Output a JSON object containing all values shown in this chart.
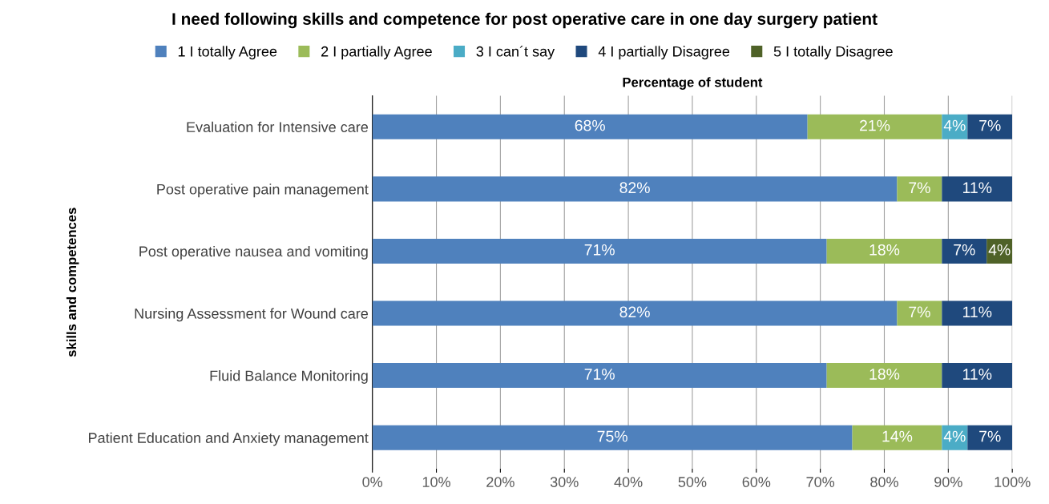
{
  "chart_data": {
    "type": "bar",
    "orientation": "horizontal",
    "stacked": true,
    "title": "I need following skills and competence for post operative care in one day surgery patient",
    "xlabel": "Percentage of student",
    "ylabel": "skills and competences",
    "categories": [
      "Evaluation for Intensive care",
      "Post operative pain management",
      "Post operative nausea and vomiting",
      "Nursing Assessment for Wound care",
      "Fluid Balance Monitoring",
      "Patient Education and Anxiety management"
    ],
    "series": [
      {
        "name": "1 I totally Agree",
        "color": "#4f81bd",
        "values": [
          68,
          82,
          71,
          82,
          71,
          75
        ],
        "value_labels": [
          "68%",
          "82%",
          "71%",
          "82%",
          "71%",
          "75%"
        ]
      },
      {
        "name": "2 I partially Agree",
        "color": "#9bbb59",
        "values": [
          21,
          7,
          18,
          7,
          18,
          14
        ],
        "value_labels": [
          "21%",
          "7%",
          "18%",
          "7%",
          "18%",
          "14%"
        ]
      },
      {
        "name": "3 I can´t say",
        "color": "#4bacc6",
        "values": [
          4,
          null,
          null,
          null,
          null,
          4
        ],
        "value_labels": [
          "4%",
          null,
          null,
          null,
          null,
          "4%"
        ]
      },
      {
        "name": "4 I partially Disagree",
        "color": "#1f497d",
        "values": [
          7,
          11,
          7,
          11,
          11,
          7
        ],
        "value_labels": [
          "7%",
          "11%",
          "7%",
          "11%",
          "11%",
          "7%"
        ]
      },
      {
        "name": "5 I totally Disagree",
        "color": "#4f6228",
        "values": [
          null,
          null,
          4,
          null,
          null,
          null
        ],
        "value_labels": [
          null,
          null,
          "4%",
          null,
          null,
          null
        ]
      }
    ],
    "xlim": [
      0,
      100
    ],
    "xticks": [
      {
        "value": 0,
        "label": "0%"
      },
      {
        "value": 10,
        "label": "10%"
      },
      {
        "value": 20,
        "label": "20%"
      },
      {
        "value": 30,
        "label": "30%"
      },
      {
        "value": 40,
        "label": "40%"
      },
      {
        "value": 50,
        "label": "50%"
      },
      {
        "value": 60,
        "label": "60%"
      },
      {
        "value": 70,
        "label": "70%"
      },
      {
        "value": 80,
        "label": "80%"
      },
      {
        "value": 90,
        "label": "90%"
      },
      {
        "value": 100,
        "label": "100%"
      }
    ],
    "grid": "x",
    "legend": "top"
  }
}
